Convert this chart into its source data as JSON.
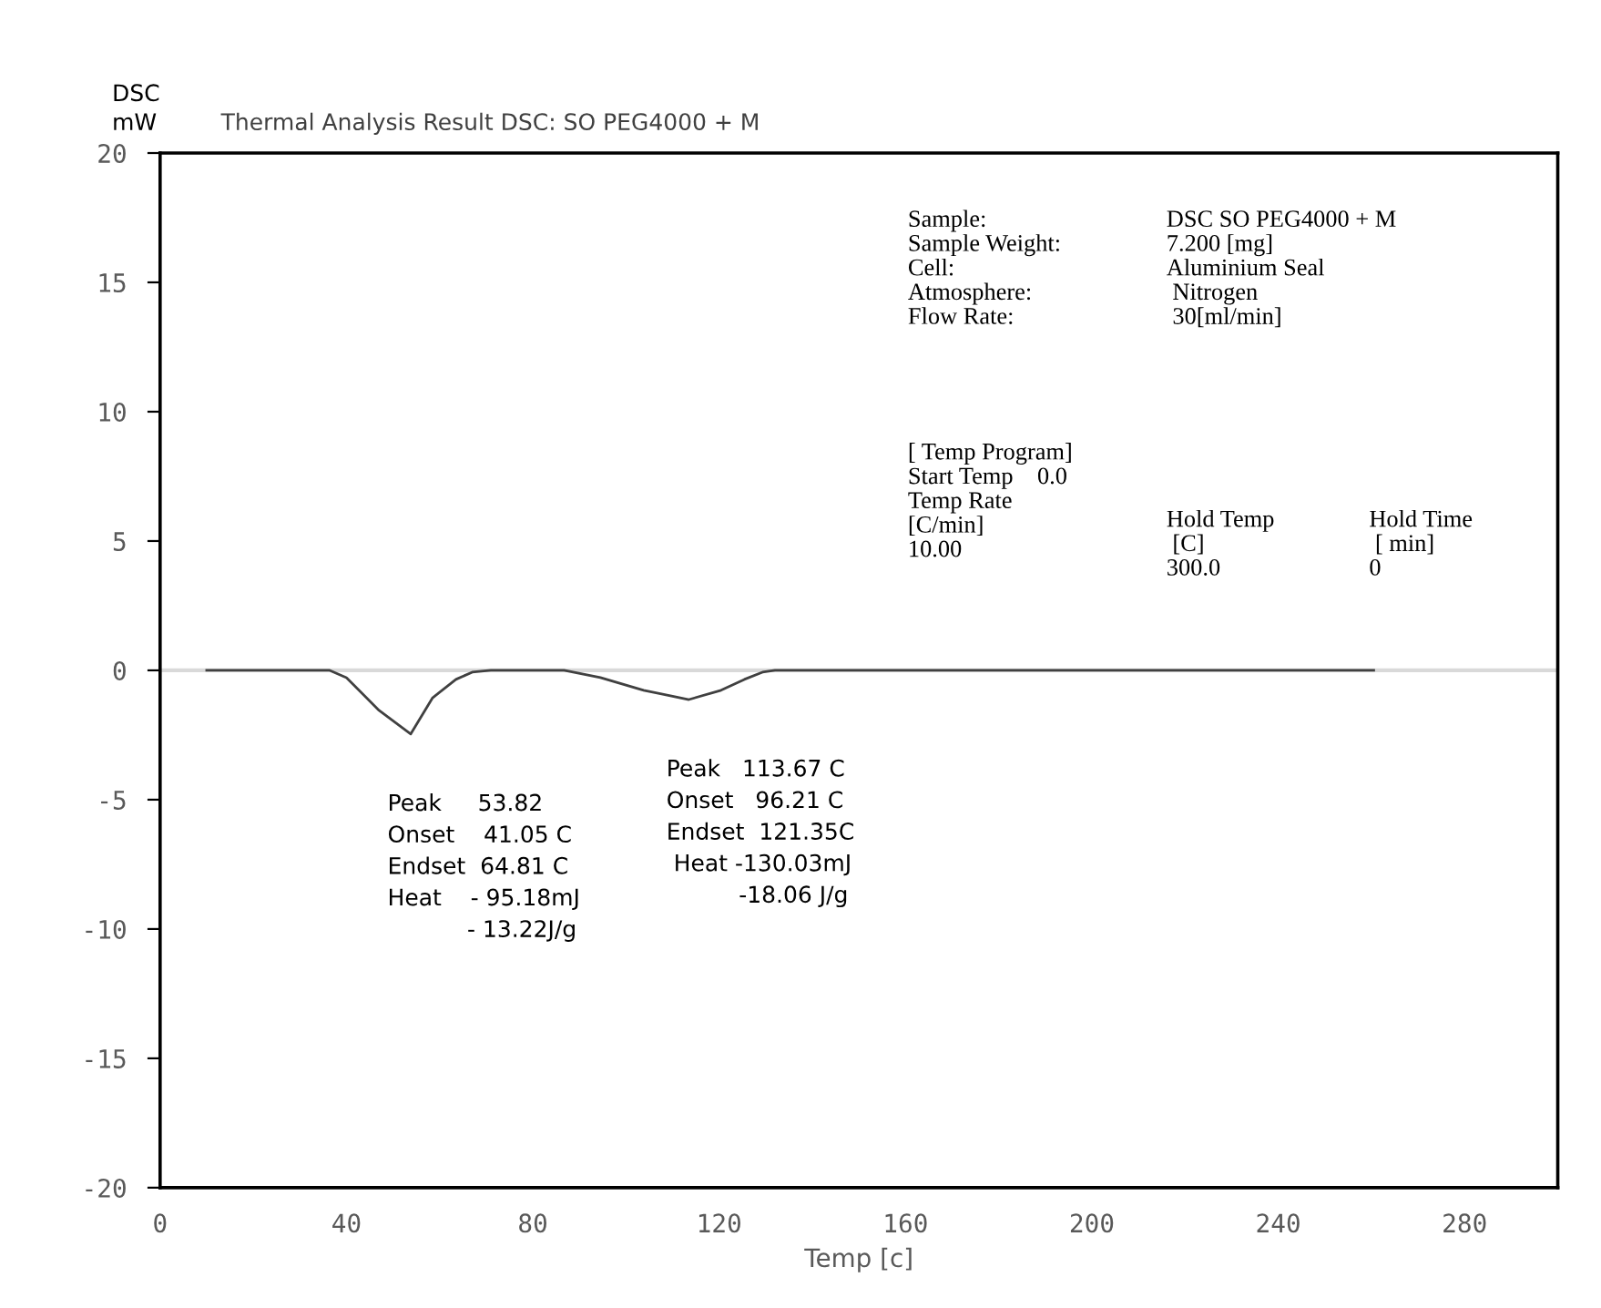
{
  "chart_data": {
    "type": "line",
    "title": "Thermal Analysis Result DSC: SO PEG4000 + M",
    "xlabel": "Temp [c]",
    "ylabel": "DSC\nmW",
    "x": [
      10,
      34.5,
      36.4,
      40,
      47,
      53.8,
      58.5,
      63.5,
      67,
      71,
      86.7,
      94.5,
      103.8,
      113.5,
      120.4,
      125.4,
      129.3,
      132,
      260.5
    ],
    "series": [
      {
        "color": "#404040",
        "values": [
          0,
          0,
          0,
          -0.28,
          -1.55,
          -2.46,
          -1.06,
          -0.35,
          -0.07,
          0,
          0,
          -0.28,
          -0.77,
          -1.13,
          -0.77,
          -0.35,
          -0.07,
          0,
          0
        ]
      }
    ],
    "xlim": [
      0,
      300
    ],
    "xticks": [
      0,
      40,
      80,
      120,
      160,
      200,
      240,
      280
    ],
    "ylim": [
      -20,
      20
    ],
    "yticks": [
      -20,
      -15,
      -10,
      -5,
      0,
      5,
      10,
      15,
      20
    ],
    "ref_lines": [
      {
        "axis": "y",
        "value": 0,
        "color": "#d9d9d9"
      }
    ],
    "grid": false,
    "legend": false,
    "marker": "none",
    "line_style": "solid",
    "annotations": [
      {
        "text": "Peak     53.82\nOnset    41.05 C\nEndset  64.81 C\nHeat    - 95.18mJ\n           - 13.22J/g",
        "x": 53.82,
        "y": -2.46
      },
      {
        "text": "Peak   113.67 C\nOnset   96.21 C\nEndset  121.35C\n Heat -130.03mJ\n          -18.06 J/g",
        "x": 113.67,
        "y": -1.13
      },
      "Sample:\nSample Weight:\nCell:\nAtmosphere:\nFlow Rate:",
      "DSC SO PEG4000 + M\n7.200 [mg]\nAluminium Seal\n Nitrogen\n 30[ml/min]",
      "[ Temp Program]\nStart Temp    0.0\nTemp Rate\n[C/min]\n10.00",
      "Hold Temp\n [C]\n300.0",
      "Hold Time\n [ min]\n0"
    ]
  }
}
